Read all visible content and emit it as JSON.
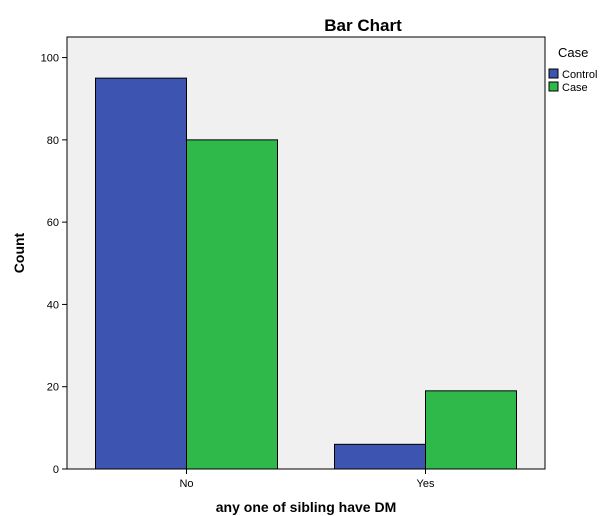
{
  "chart_data": {
    "type": "bar",
    "title": "Bar Chart",
    "xlabel": "any one of sibling have DM",
    "ylabel": "Count",
    "categories": [
      "No",
      "Yes"
    ],
    "series": [
      {
        "name": "Control",
        "values": [
          95,
          6
        ],
        "color": "#3d55b0"
      },
      {
        "name": "Case",
        "values": [
          80,
          19
        ],
        "color": "#2fb94a"
      }
    ],
    "ylim": [
      0,
      105
    ],
    "yticks": [
      0,
      20,
      40,
      60,
      80,
      100
    ],
    "legend": {
      "title": "Case",
      "placement": "right"
    },
    "plot_background": "#f0f0f0",
    "grid": false
  }
}
